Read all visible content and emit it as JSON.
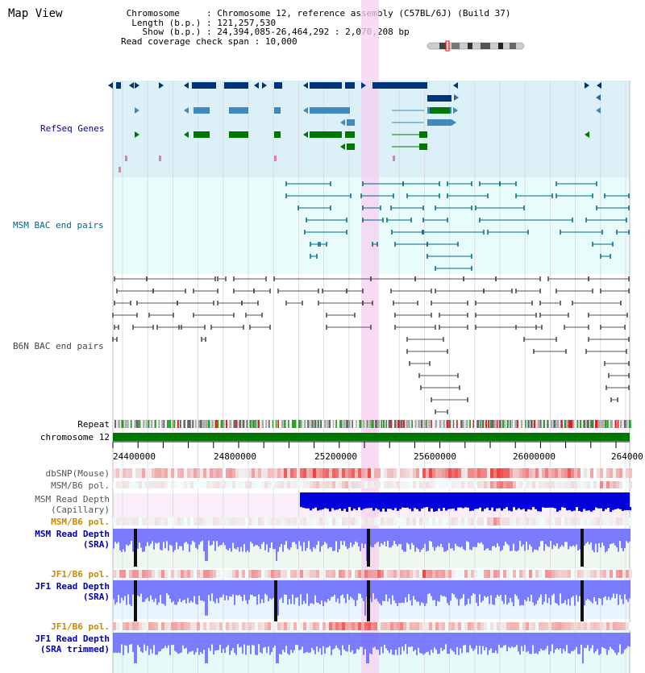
{
  "title": "Map View",
  "info": {
    "chromosome_label": "Chromosome",
    "chromosome_value": "Chromosome 12, reference assembly (C57BL/6J) (Build 37)",
    "length_label": "Length (b.p.)",
    "length_value": "121,257,530",
    "show_label": "Show (b.p.)",
    "show_value": "24,394,085-26,464,292 : 2,070,208 bp",
    "coverage_label": "Read coverage check span",
    "coverage_value": "10,000"
  },
  "tracks": {
    "refseq": "RefSeq Genes",
    "msm_bac": "MSM BAC end pairs",
    "b6n_bac": "B6N BAC end pairs",
    "repeat": "Repeat",
    "chromosome": "chromosome 12",
    "dbsnp": "dbSNP(Mouse)",
    "msm_b6_pol_1": "MSM/B6 pol.",
    "msm_depth_cap_1": "MSM Read Depth",
    "msm_depth_cap_2": "(Capillary)",
    "msm_b6_pol_2": "MSM/B6 pol.",
    "msm_depth_sra_1": "MSM Read Depth",
    "msm_depth_sra_2": "(SRA)",
    "jf1_b6_pol_1": "JF1/B6 pol.",
    "jf1_depth_sra_1": "JF1 Read Depth",
    "jf1_depth_sra_2": "(SRA)",
    "jf1_b6_pol_2": "JF1/B6 pol.",
    "jf1_depth_trim_1": "JF1 Read Depth",
    "jf1_depth_trim_2": "(SRA trimmed)"
  },
  "axis": {
    "ticks": [
      "24400000",
      "24800000",
      "25200000",
      "25600000",
      "26000000",
      "264000"
    ]
  },
  "colors": {
    "refseq_label": "#0000aa",
    "msm_label": "#006688",
    "b6n_label": "#444444",
    "pol_label": "#cc8800",
    "depth_label": "#0000aa",
    "highlight": "#f7d0f0",
    "refseq_bg": "#dcf0f8",
    "msm_bg": "#e8fcfc",
    "chromosome_bar": "#007700"
  },
  "icons": {
    "ideogram": "chromosome-ideogram-icon"
  }
}
